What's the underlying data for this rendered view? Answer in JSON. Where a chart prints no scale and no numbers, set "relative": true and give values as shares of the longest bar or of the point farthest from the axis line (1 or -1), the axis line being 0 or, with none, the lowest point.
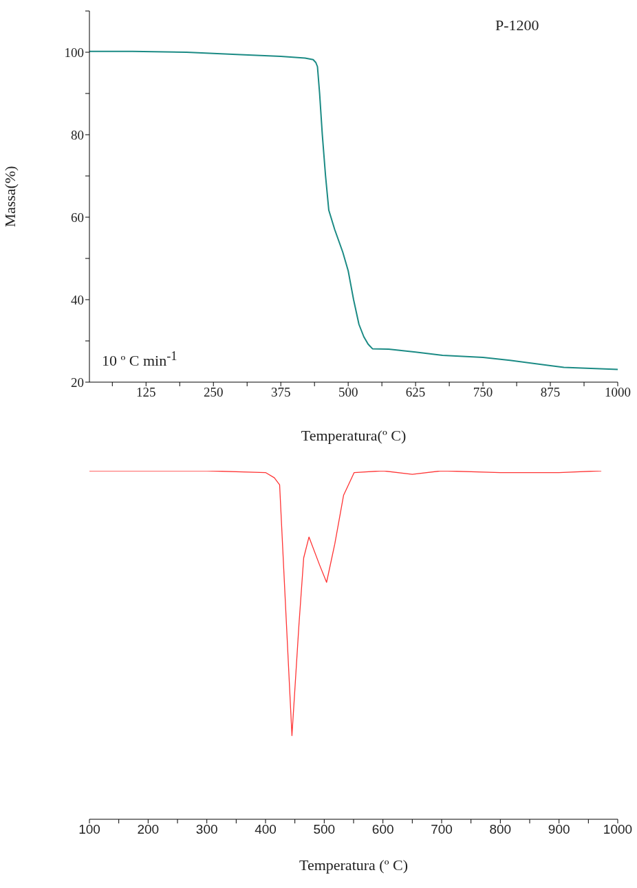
{
  "chart_data": [
    {
      "type": "line",
      "xlabel": "Temperatura(º C)",
      "ylabel": "Massa(%)",
      "annotations": [
        "P-1200",
        "10 º C min$^{-1}$"
      ],
      "xlim": [
        20,
        1000
      ],
      "ylim": [
        20,
        110
      ],
      "xticks": [
        {
          "value": 62.5,
          "label": null
        },
        125,
        {
          "value": 187.5,
          "label": null
        },
        250,
        {
          "value": 312.5,
          "label": null
        },
        375,
        {
          "value": 437.5,
          "label": null
        },
        500,
        {
          "value": 562.5,
          "label": null
        },
        625,
        {
          "value": 687.5,
          "label": null
        },
        750,
        {
          "value": 812.5,
          "label": null
        },
        875,
        {
          "value": 937.5,
          "label": null
        },
        1000
      ],
      "yticks": [
        20,
        {
          "value": 30,
          "label": null
        },
        40,
        {
          "value": 50,
          "label": null
        },
        60,
        {
          "value": 70,
          "label": null
        },
        80,
        {
          "value": 90,
          "label": null
        },
        100,
        {
          "value": 110,
          "label": null
        }
      ],
      "marker": "none",
      "line_style": "solid",
      "series": [
        {
          "color": "#1a8a84",
          "x": [
            20,
            100,
            200,
            300,
            375,
            420,
            435,
            440,
            443,
            447,
            452,
            458,
            464,
            475,
            490,
            500,
            510,
            520,
            529,
            537,
            545,
            575,
            625,
            675,
            750,
            800,
            875,
            900,
            1000
          ],
          "values": [
            100.2,
            100.2,
            100,
            99.4,
            99,
            98.6,
            98.2,
            97.5,
            96.5,
            90,
            80,
            70,
            61.7,
            57,
            51.5,
            47,
            40,
            34,
            31,
            29.2,
            28.1,
            28,
            27.3,
            26.5,
            26,
            25.3,
            24,
            23.6,
            23.1
          ]
        }
      ]
    },
    {
      "type": "line",
      "relative": true,
      "xlabel": "Temperatura (º C)",
      "xlim": [
        100,
        1000
      ],
      "xticks": [
        100,
        {
          "value": 150,
          "label": null
        },
        200,
        {
          "value": 250,
          "label": null
        },
        300,
        {
          "value": 350,
          "label": null
        },
        400,
        {
          "value": 450,
          "label": null
        },
        500,
        {
          "value": 550,
          "label": null
        },
        600,
        {
          "value": 650,
          "label": null
        },
        700,
        {
          "value": 750,
          "label": null
        },
        800,
        {
          "value": 850,
          "label": null
        },
        900,
        {
          "value": 950,
          "label": null
        },
        1000
      ],
      "tick_labels": "x",
      "marker": "none",
      "line_style": "solid",
      "series": [
        {
          "color": "#ff3333",
          "x": [
            100,
            200,
            300,
            400,
            415,
            424,
            433,
            445,
            457,
            465,
            474,
            492,
            504,
            518,
            533,
            551,
            600,
            650,
            700,
            800,
            900,
            972
          ],
          "values": [
            1,
            1,
            1,
            0.995,
            0.98,
            0.96,
            0.65,
            0.24,
            0.56,
            0.75,
            0.81,
            0.73,
            0.68,
            0.79,
            0.93,
            0.995,
            1,
            0.99,
            1,
            0.995,
            0.995,
            1
          ]
        }
      ]
    }
  ]
}
